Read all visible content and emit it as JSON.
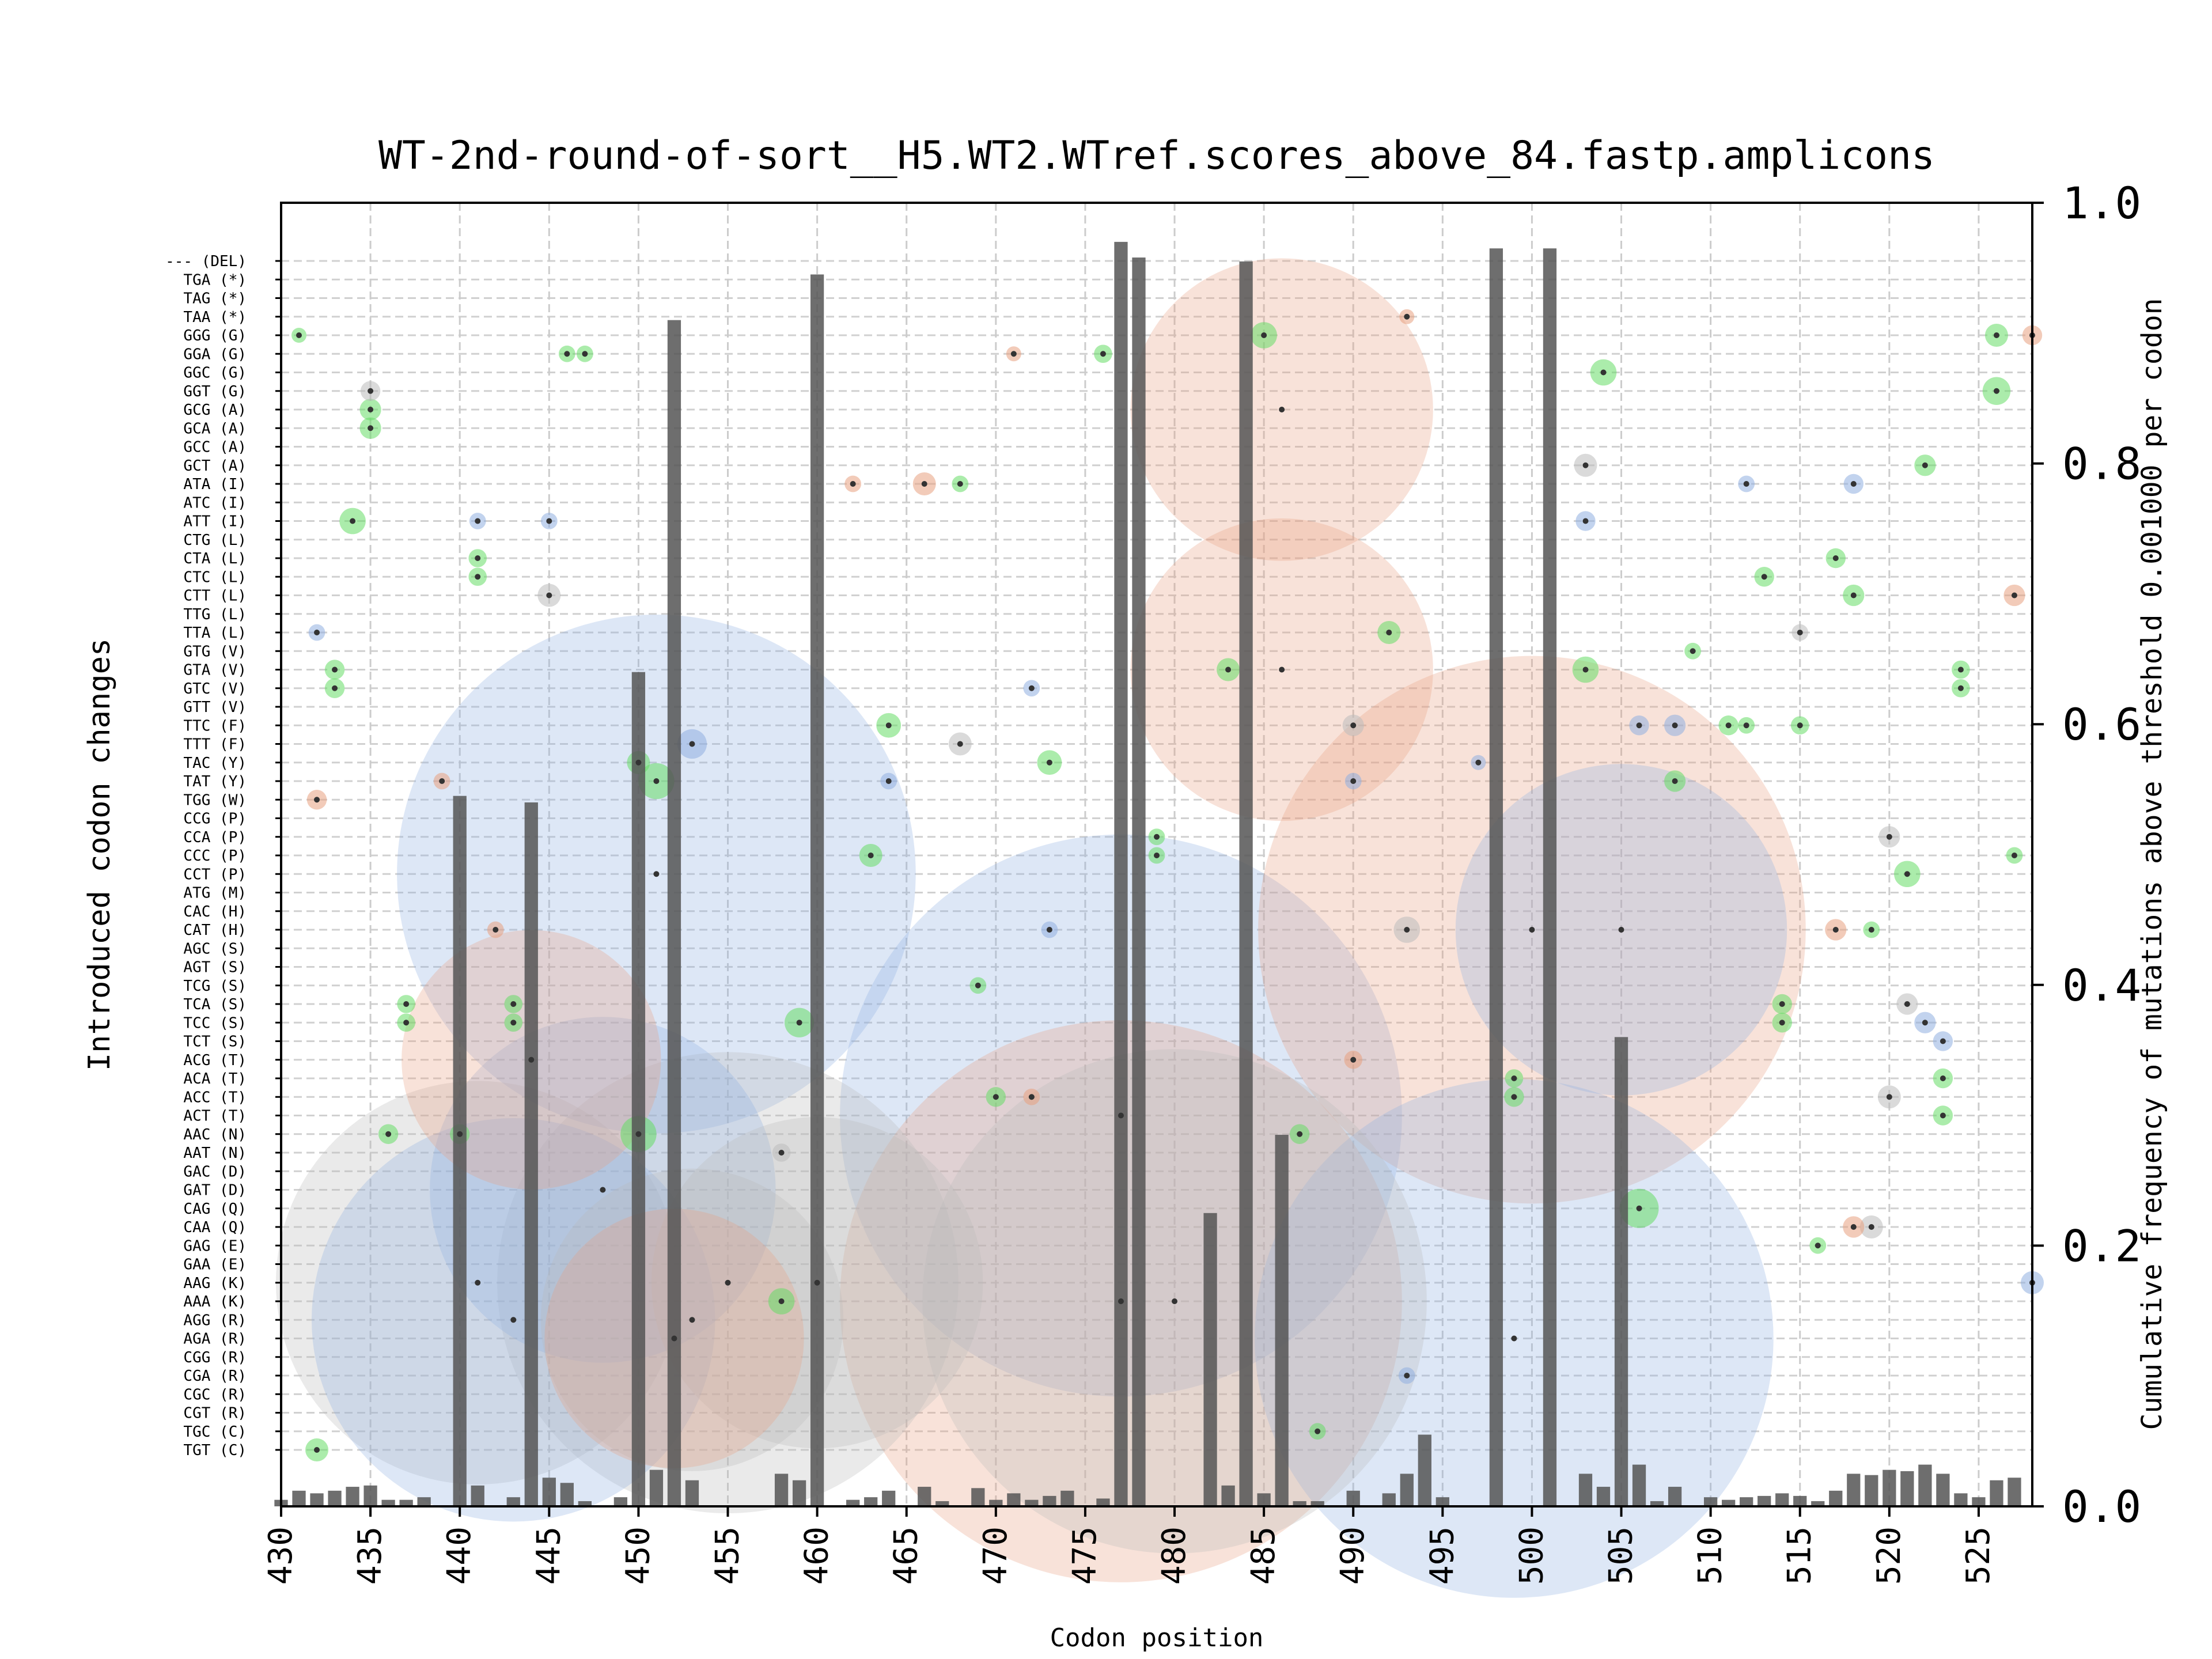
{
  "chart_data": {
    "type": "bubble-bar",
    "title": "WT-2nd-round-of-sort__H5.WT2.WTref.scores_above_84.fastp.amplicons",
    "xlabel": "Codon position",
    "ylabel_left": "Introduced codon changes",
    "ylabel_right": "Cumulative frequency of mutations above threshold 0.001000 per codon",
    "xlim": [
      430,
      528
    ],
    "x_ticks": [
      430,
      435,
      440,
      445,
      450,
      455,
      460,
      465,
      470,
      475,
      480,
      485,
      490,
      495,
      500,
      505,
      510,
      515,
      520,
      525
    ],
    "right_ylim": [
      0.0,
      1.0
    ],
    "right_y_ticks": [
      "0.0",
      "0.2",
      "0.4",
      "0.6",
      "0.8",
      "1.0"
    ],
    "grid": "dashed",
    "codon_labels": [
      "--- (DEL)",
      "TGA (*)",
      "TAG (*)",
      "TAA (*)",
      "GGG (G)",
      "GGA (G)",
      "GGC (G)",
      "GGT (G)",
      "GCG (A)",
      "GCA (A)",
      "GCC (A)",
      "GCT (A)",
      "ATA (I)",
      "ATC (I)",
      "ATT (I)",
      "CTG (L)",
      "CTA (L)",
      "CTC (L)",
      "CTT (L)",
      "TTG (L)",
      "TTA (L)",
      "GTG (V)",
      "GTA (V)",
      "GTC (V)",
      "GTT (V)",
      "TTC (F)",
      "TTT (F)",
      "TAC (Y)",
      "TAT (Y)",
      "TGG (W)",
      "CCG (P)",
      "CCA (P)",
      "CCC (P)",
      "CCT (P)",
      "ATG (M)",
      "CAC (H)",
      "CAT (H)",
      "AGC (S)",
      "AGT (S)",
      "TCG (S)",
      "TCA (S)",
      "TCC (S)",
      "TCT (S)",
      "ACG (T)",
      "ACA (T)",
      "ACC (T)",
      "ACT (T)",
      "AAC (N)",
      "AAT (N)",
      "GAC (D)",
      "GAT (D)",
      "CAG (Q)",
      "CAA (Q)",
      "GAG (E)",
      "GAA (E)",
      "AAG (K)",
      "AAA (K)",
      "AGG (R)",
      "AGA (R)",
      "CGG (R)",
      "CGA (R)",
      "CGC (R)",
      "CGT (R)",
      "TGC (C)",
      "TGT (C)"
    ],
    "bars": [
      [
        430,
        0.005
      ],
      [
        431,
        0.012
      ],
      [
        432,
        0.01
      ],
      [
        433,
        0.012
      ],
      [
        434,
        0.015
      ],
      [
        435,
        0.016
      ],
      [
        436,
        0.005
      ],
      [
        437,
        0.005
      ],
      [
        438,
        0.007
      ],
      [
        440,
        0.545
      ],
      [
        441,
        0.016
      ],
      [
        443,
        0.007
      ],
      [
        444,
        0.54
      ],
      [
        445,
        0.022
      ],
      [
        446,
        0.018
      ],
      [
        447,
        0.004
      ],
      [
        449,
        0.007
      ],
      [
        450,
        0.64
      ],
      [
        451,
        0.028
      ],
      [
        452,
        0.91
      ],
      [
        453,
        0.02
      ],
      [
        458,
        0.025
      ],
      [
        459,
        0.02
      ],
      [
        460,
        0.945
      ],
      [
        462,
        0.005
      ],
      [
        463,
        0.007
      ],
      [
        464,
        0.012
      ],
      [
        466,
        0.015
      ],
      [
        467,
        0.004
      ],
      [
        469,
        0.014
      ],
      [
        470,
        0.005
      ],
      [
        471,
        0.01
      ],
      [
        472,
        0.005
      ],
      [
        473,
        0.008
      ],
      [
        474,
        0.012
      ],
      [
        476,
        0.006
      ],
      [
        477,
        0.97
      ],
      [
        478,
        0.958
      ],
      [
        482,
        0.225
      ],
      [
        483,
        0.016
      ],
      [
        484,
        0.955
      ],
      [
        485,
        0.01
      ],
      [
        486,
        0.285
      ],
      [
        487,
        0.004
      ],
      [
        488,
        0.004
      ],
      [
        490,
        0.012
      ],
      [
        492,
        0.01
      ],
      [
        493,
        0.025
      ],
      [
        494,
        0.055
      ],
      [
        495,
        0.007
      ],
      [
        498,
        0.965
      ],
      [
        501,
        0.965
      ],
      [
        503,
        0.025
      ],
      [
        504,
        0.015
      ],
      [
        505,
        0.36
      ],
      [
        506,
        0.032
      ],
      [
        507,
        0.004
      ],
      [
        508,
        0.015
      ],
      [
        510,
        0.007
      ],
      [
        511,
        0.005
      ],
      [
        512,
        0.007
      ],
      [
        513,
        0.008
      ],
      [
        514,
        0.01
      ],
      [
        515,
        0.008
      ],
      [
        516,
        0.004
      ],
      [
        517,
        0.012
      ],
      [
        518,
        0.025
      ],
      [
        519,
        0.024
      ],
      [
        520,
        0.028
      ],
      [
        521,
        0.027
      ],
      [
        522,
        0.032
      ],
      [
        523,
        0.025
      ],
      [
        524,
        0.01
      ],
      [
        525,
        0.007
      ],
      [
        526,
        0.02
      ],
      [
        527,
        0.022
      ]
    ],
    "bubble_colors": {
      "green": "#66dd66",
      "orange": "#e8a080",
      "blue": "#90aee0",
      "gray": "#bbbbbb"
    },
    "bubbles": [
      [
        451,
        "CCT (P)",
        180,
        "blue"
      ],
      [
        500,
        "CAT (H)",
        190,
        "orange"
      ],
      [
        486,
        "GCG (A)",
        105,
        "orange"
      ],
      [
        486,
        "GTA (V)",
        105,
        "orange"
      ],
      [
        477,
        "ACT (T)",
        195,
        "blue"
      ],
      [
        477,
        "AAA (K)",
        195,
        "orange"
      ],
      [
        480,
        "AAA (K)",
        175,
        "gray"
      ],
      [
        499,
        "AGA (R)",
        180,
        "blue"
      ],
      [
        505,
        "CAT (H)",
        115,
        "blue"
      ],
      [
        441,
        "AAG (K)",
        140,
        "gray"
      ],
      [
        443,
        "AGG (R)",
        140,
        "blue"
      ],
      [
        455,
        "AAG (K)",
        160,
        "gray"
      ],
      [
        448,
        "GAT (D)",
        120,
        "blue"
      ],
      [
        453,
        "AGG (R)",
        105,
        "gray"
      ],
      [
        452,
        "AGA (R)",
        90,
        "orange"
      ],
      [
        460,
        "AAG (K)",
        115,
        "gray"
      ],
      [
        444,
        "ACG (T)",
        90,
        "orange"
      ],
      [
        485,
        "GGG (G)",
        12,
        "green"
      ],
      [
        483,
        "GTA (V)",
        10,
        "green"
      ],
      [
        451,
        "TAT (Y)",
        18,
        "green"
      ],
      [
        459,
        "TCC (S)",
        14,
        "green"
      ],
      [
        450,
        "AAC (N)",
        18,
        "green"
      ],
      [
        506,
        "CAG (Q)",
        20,
        "green"
      ],
      [
        504,
        "GGC (G)",
        12,
        "green"
      ],
      [
        503,
        "GTA (V)",
        12,
        "green"
      ],
      [
        508,
        "TAT (Y)",
        9,
        "green"
      ],
      [
        464,
        "TTC (F)",
        11,
        "green"
      ],
      [
        473,
        "TAC (Y)",
        11,
        "green"
      ],
      [
        463,
        "CCC (P)",
        10,
        "green"
      ],
      [
        434,
        "ATT (I)",
        12,
        "green"
      ],
      [
        435,
        "GCG (A)",
        9,
        "green"
      ],
      [
        435,
        "GCA (A)",
        9,
        "green"
      ],
      [
        433,
        "GTA (V)",
        8,
        "green"
      ],
      [
        433,
        "GTC (V)",
        8,
        "green"
      ],
      [
        432,
        "TGT (C)",
        10,
        "green"
      ],
      [
        526,
        "GGT (G)",
        13,
        "green"
      ],
      [
        526,
        "GGG (G)",
        10,
        "green"
      ],
      [
        522,
        "GCT (A)",
        9,
        "green"
      ],
      [
        521,
        "CCT (P)",
        12,
        "green"
      ],
      [
        523,
        "ACA (T)",
        8,
        "green"
      ],
      [
        523,
        "ACT (T)",
        8,
        "green"
      ],
      [
        518,
        "CTT (L)",
        9,
        "green"
      ],
      [
        517,
        "CTA (L)",
        8,
        "green"
      ],
      [
        514,
        "TCA (S)",
        8,
        "green"
      ],
      [
        514,
        "TCC (S)",
        8,
        "green"
      ],
      [
        513,
        "CTC (L)",
        8,
        "green"
      ],
      [
        511,
        "TTC (F)",
        8,
        "green"
      ],
      [
        512,
        "TTC (F)",
        6,
        "green"
      ],
      [
        492,
        "TTA (L)",
        10,
        "green"
      ],
      [
        499,
        "ACC (T)",
        8,
        "green"
      ],
      [
        499,
        "ACA (T)",
        7,
        "green"
      ],
      [
        470,
        "ACC (T)",
        8,
        "green"
      ],
      [
        476,
        "GGA (G)",
        7,
        "green"
      ],
      [
        468,
        "ATA (I)",
        6,
        "green"
      ],
      [
        441,
        "CTA (L)",
        7,
        "green"
      ],
      [
        441,
        "CTC (L)",
        7,
        "green"
      ],
      [
        437,
        "TCA (S)",
        7,
        "green"
      ],
      [
        437,
        "TCC (S)",
        7,
        "green"
      ],
      [
        443,
        "TCA (S)",
        7,
        "green"
      ],
      [
        443,
        "TCC (S)",
        7,
        "green"
      ],
      [
        436,
        "AAC (N)",
        8,
        "green"
      ],
      [
        440,
        "AAC (N)",
        8,
        "green"
      ],
      [
        446,
        "GGA (G)",
        6,
        "green"
      ],
      [
        447,
        "GGA (G)",
        6,
        "green"
      ],
      [
        487,
        "AAC (N)",
        8,
        "green"
      ],
      [
        450,
        "TAC (Y)",
        10,
        "green"
      ],
      [
        524,
        "GTA (V)",
        7,
        "green"
      ],
      [
        524,
        "GTC (V)",
        7,
        "green"
      ],
      [
        515,
        "TTC (F)",
        7,
        "green"
      ],
      [
        458,
        "AAA (K)",
        12,
        "green"
      ],
      [
        519,
        "CAT (H)",
        6,
        "green"
      ],
      [
        488,
        "TGC (C)",
        6,
        "green"
      ],
      [
        527,
        "CCC (P)",
        6,
        "green"
      ],
      [
        469,
        "TCG (S)",
        6,
        "green"
      ],
      [
        479,
        "CCA (P)",
        6,
        "green"
      ],
      [
        479,
        "CCC (P)",
        6,
        "green"
      ],
      [
        431,
        "GGG (G)",
        5,
        "green"
      ],
      [
        509,
        "GTG (V)",
        6,
        "green"
      ],
      [
        516,
        "GAG (E)",
        6,
        "green"
      ],
      [
        506,
        "TTC (F)",
        8,
        "blue"
      ],
      [
        508,
        "TTC (F)",
        9,
        "blue"
      ],
      [
        503,
        "ATT (I)",
        8,
        "blue"
      ],
      [
        453,
        "TTT (F)",
        14,
        "blue"
      ],
      [
        518,
        "ATA (I)",
        8,
        "blue"
      ],
      [
        512,
        "ATA (I)",
        6,
        "blue"
      ],
      [
        493,
        "CGA (R)",
        6,
        "blue"
      ],
      [
        441,
        "ATT (I)",
        6,
        "blue"
      ],
      [
        445,
        "ATT (I)",
        6,
        "blue"
      ],
      [
        432,
        "TTA (L)",
        6,
        "blue"
      ],
      [
        472,
        "GTC (V)",
        6,
        "blue"
      ],
      [
        473,
        "CAT (H)",
        6,
        "blue"
      ],
      [
        464,
        "TAT (Y)",
        6,
        "blue"
      ],
      [
        490,
        "TAT (Y)",
        6,
        "blue"
      ],
      [
        497,
        "TAC (Y)",
        5,
        "blue"
      ],
      [
        523,
        "TCT (S)",
        8,
        "blue"
      ],
      [
        522,
        "TCC (S)",
        9,
        "blue"
      ],
      [
        528,
        "AAG (K)",
        10,
        "blue"
      ],
      [
        445,
        "CTT (L)",
        10,
        "gray"
      ],
      [
        466,
        "ATA (I)",
        10,
        "orange"
      ],
      [
        462,
        "ATA (I)",
        6,
        "orange"
      ],
      [
        432,
        "TGG (W)",
        8,
        "orange"
      ],
      [
        439,
        "TAT (Y)",
        6,
        "orange"
      ],
      [
        517,
        "CAT (H)",
        9,
        "orange"
      ],
      [
        518,
        "CAA (Q)",
        9,
        "orange"
      ],
      [
        490,
        "ACG (T)",
        7,
        "orange"
      ],
      [
        527,
        "CTT (L)",
        9,
        "orange"
      ],
      [
        528,
        "GGG (G)",
        8,
        "orange"
      ],
      [
        442,
        "CAT (H)",
        6,
        "orange"
      ],
      [
        472,
        "ACC (T)",
        6,
        "orange"
      ],
      [
        471,
        "GGA (G)",
        5,
        "orange"
      ],
      [
        493,
        "TAA (*)",
        5,
        "orange"
      ],
      [
        468,
        "TTT (F)",
        10,
        "gray"
      ],
      [
        503,
        "GCT (A)",
        10,
        "gray"
      ],
      [
        520,
        "ACC (T)",
        10,
        "gray"
      ],
      [
        520,
        "CCA (P)",
        9,
        "gray"
      ],
      [
        521,
        "TCA (S)",
        9,
        "gray"
      ],
      [
        519,
        "CAA (Q)",
        10,
        "gray"
      ],
      [
        493,
        "CAT (H)",
        12,
        "gray"
      ],
      [
        490,
        "TTC (F)",
        9,
        "gray"
      ],
      [
        435,
        "GGT (G)",
        8,
        "gray"
      ],
      [
        515,
        "TTA (L)",
        6,
        "gray"
      ],
      [
        458,
        "AAT (N)",
        7,
        "gray"
      ]
    ]
  }
}
